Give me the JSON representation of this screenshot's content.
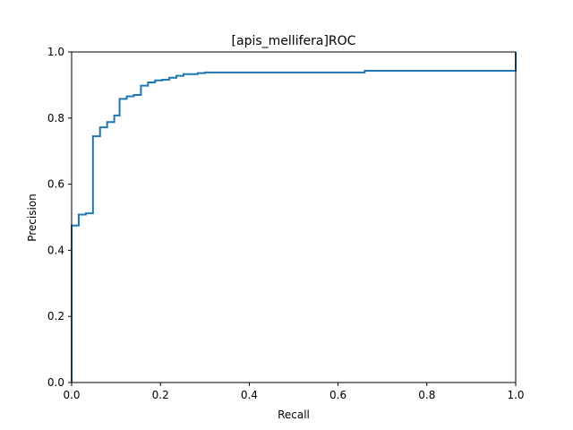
{
  "chart_data": {
    "type": "line",
    "drawstyle": "steps-post",
    "title": "[apis_mellifera]ROC",
    "xlabel": "Recall",
    "ylabel": "Precision",
    "xlim": [
      0.0,
      1.0
    ],
    "ylim": [
      0.0,
      1.0
    ],
    "xticks": [
      "0.0",
      "0.2",
      "0.4",
      "0.6",
      "0.8",
      "1.0"
    ],
    "yticks": [
      "0.0",
      "0.2",
      "0.4",
      "0.6",
      "0.8",
      "1.0"
    ],
    "grid": false,
    "legend": "none",
    "series_color": "#1f77b4",
    "series": [
      {
        "x": [
          0.0,
          0.0,
          0.016,
          0.032,
          0.048,
          0.064,
          0.08,
          0.096,
          0.108,
          0.124,
          0.14,
          0.156,
          0.172,
          0.188,
          0.204,
          0.22,
          0.236,
          0.252,
          0.284,
          0.3,
          0.66,
          1.0,
          1.0
        ],
        "y": [
          0.0,
          0.475,
          0.508,
          0.512,
          0.745,
          0.772,
          0.788,
          0.808,
          0.858,
          0.866,
          0.87,
          0.898,
          0.908,
          0.914,
          0.916,
          0.922,
          0.928,
          0.933,
          0.936,
          0.938,
          0.943,
          0.943,
          1.0
        ]
      }
    ]
  }
}
